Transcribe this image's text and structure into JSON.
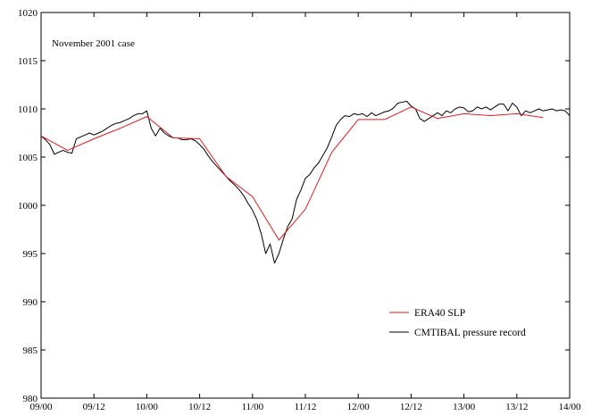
{
  "chart_data": {
    "type": "line",
    "annotation": "November 2001 case",
    "title": "",
    "xlabel": "",
    "ylabel": "",
    "x_ticks": [
      "09/00",
      "09/12",
      "10/00",
      "10/12",
      "11/00",
      "11/12",
      "12/00",
      "12/12",
      "13/00",
      "13/12",
      "14/00"
    ],
    "x_tick_hours": [
      0,
      12,
      24,
      36,
      48,
      60,
      72,
      84,
      96,
      108,
      120
    ],
    "xlim_hours": [
      0,
      120
    ],
    "ylim": [
      980,
      1020
    ],
    "y_ticks": [
      980,
      985,
      990,
      995,
      1000,
      1005,
      1010,
      1015,
      1020
    ],
    "grid": false,
    "legend_position": "bottom-right",
    "series": [
      {
        "name": "ERA40 SLP",
        "color": "#e31a1c",
        "x_hours": [
          0,
          6,
          12,
          18,
          24,
          30,
          36,
          42,
          48,
          54,
          60,
          66,
          72,
          78,
          84,
          90,
          96,
          102,
          108,
          114
        ],
        "values": [
          1007.2,
          1005.7,
          1006.9,
          1008.0,
          1009.2,
          1007.0,
          1006.9,
          1003.0,
          1000.9,
          996.4,
          999.6,
          1005.5,
          1008.9,
          1008.9,
          1010.2,
          1009.0,
          1009.5,
          1009.3,
          1009.5,
          1009.1
        ]
      },
      {
        "name": "CMTIBAL pressure record",
        "color": "#000000",
        "x_hours": [
          0,
          1,
          2,
          3,
          4,
          5,
          6,
          7,
          8,
          9,
          10,
          11,
          12,
          13,
          14,
          15,
          16,
          17,
          18,
          19,
          20,
          21,
          22,
          23,
          24,
          25,
          26,
          27,
          28,
          29,
          30,
          31,
          32,
          33,
          34,
          35,
          36,
          37,
          38,
          39,
          40,
          41,
          42,
          43,
          44,
          45,
          46,
          47,
          48,
          49,
          50,
          51,
          52,
          53,
          54,
          55,
          56,
          57,
          58,
          59,
          60,
          61,
          62,
          63,
          64,
          65,
          66,
          67,
          68,
          69,
          70,
          71,
          72,
          73,
          74,
          75,
          76,
          77,
          78,
          79,
          80,
          81,
          82,
          83,
          84,
          85,
          86,
          87,
          88,
          89,
          90,
          91,
          92,
          93,
          94,
          95,
          96,
          97,
          98,
          99,
          100,
          101,
          102,
          103,
          104,
          105,
          106,
          107,
          108,
          109,
          110,
          111,
          112,
          113,
          114,
          115,
          116,
          117,
          118,
          119,
          120
        ],
        "values": [
          1007.2,
          1006.8,
          1006.3,
          1005.3,
          1005.5,
          1005.7,
          1005.5,
          1005.4,
          1006.9,
          1007.1,
          1007.3,
          1007.5,
          1007.3,
          1007.5,
          1007.7,
          1008.0,
          1008.3,
          1008.5,
          1008.6,
          1008.8,
          1009.0,
          1009.3,
          1009.5,
          1009.5,
          1009.8,
          1008.0,
          1007.2,
          1008.0,
          1007.5,
          1007.2,
          1007.0,
          1007.0,
          1006.8,
          1006.8,
          1006.9,
          1006.7,
          1006.3,
          1005.8,
          1005.1,
          1004.5,
          1004.0,
          1003.5,
          1003.0,
          1002.5,
          1002.1,
          1001.6,
          1001.0,
          1000.2,
          999.5,
          998.5,
          997.0,
          995.0,
          996.0,
          994.0,
          995.0,
          996.5,
          997.8,
          998.6,
          1000.6,
          1001.6,
          1002.8,
          1003.2,
          1003.9,
          1004.4,
          1005.2,
          1006.0,
          1007.1,
          1008.3,
          1008.9,
          1009.3,
          1009.2,
          1009.5,
          1009.4,
          1009.5,
          1009.2,
          1009.6,
          1009.3,
          1009.5,
          1009.7,
          1009.8,
          1010.1,
          1010.6,
          1010.7,
          1010.8,
          1010.3,
          1010.0,
          1009.0,
          1008.7,
          1009.0,
          1009.3,
          1009.6,
          1009.3,
          1009.8,
          1009.6,
          1010.0,
          1010.2,
          1010.1,
          1009.7,
          1009.8,
          1010.2,
          1010.0,
          1010.2,
          1009.9,
          1010.2,
          1010.5,
          1010.5,
          1009.8,
          1010.6,
          1010.2,
          1009.3,
          1009.8,
          1009.6,
          1009.8,
          1010.0,
          1009.8,
          1009.9,
          1010.0,
          1009.8,
          1009.9,
          1009.8,
          1009.3
        ]
      }
    ]
  }
}
